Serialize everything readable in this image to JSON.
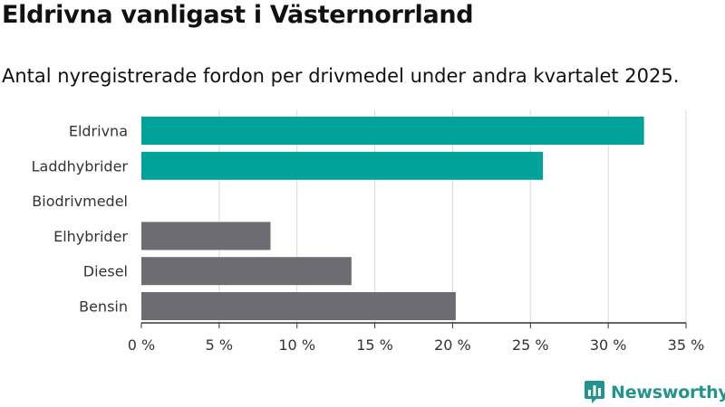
{
  "title": "Eldrivna vanligast i Västernorrland",
  "subtitle": "Antal nyregistrerade fordon per drivmedel under andra kvartalet 2025.",
  "brand": {
    "name": "Newsworthy",
    "icon": "newsworthy-logo-icon",
    "color": "#23948c"
  },
  "colors": {
    "highlight": "#00a29a",
    "default": "#6d6c73",
    "grid": "#d9d9d9",
    "axis": "#333333"
  },
  "chart_data": {
    "type": "bar",
    "orientation": "horizontal",
    "categories": [
      "Eldrivna",
      "Laddhybrider",
      "Biodrivmedel",
      "Elhybrider",
      "Diesel",
      "Bensin"
    ],
    "values": [
      32.3,
      25.8,
      0,
      8.3,
      13.5,
      20.2
    ],
    "highlighted": [
      true,
      true,
      true,
      false,
      false,
      false
    ],
    "xlim": [
      0,
      35
    ],
    "x_ticks": [
      0,
      5,
      10,
      15,
      20,
      25,
      30,
      35
    ],
    "x_tick_labels": [
      "0 %",
      "5 %",
      "10 %",
      "15 %",
      "20 %",
      "25 %",
      "30 %",
      "35 %"
    ],
    "grid": true,
    "legend": "none"
  }
}
